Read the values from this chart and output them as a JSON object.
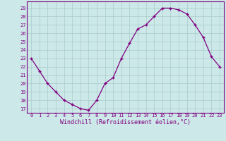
{
  "x": [
    0,
    1,
    2,
    3,
    4,
    5,
    6,
    7,
    8,
    9,
    10,
    11,
    12,
    13,
    14,
    15,
    16,
    17,
    18,
    19,
    20,
    21,
    22,
    23
  ],
  "y": [
    23,
    21.5,
    20,
    19,
    18,
    17.5,
    17,
    16.8,
    18,
    20,
    20.7,
    23,
    24.8,
    26.5,
    27,
    28,
    29,
    29,
    28.8,
    28.3,
    27,
    25.5,
    23.2,
    22
  ],
  "line_color": "#800080",
  "marker": "+",
  "bg_color": "#cce8e8",
  "grid_color": "#aacccc",
  "xlabel": "Windchill (Refroidissement éolien,°C)",
  "ylabel_ticks": [
    17,
    18,
    19,
    20,
    21,
    22,
    23,
    24,
    25,
    26,
    27,
    28,
    29
  ],
  "ylim": [
    16.5,
    29.8
  ],
  "xlim": [
    -0.5,
    23.5
  ],
  "xlabel_color": "#800080",
  "tick_color": "#800080",
  "spine_color": "#800080"
}
